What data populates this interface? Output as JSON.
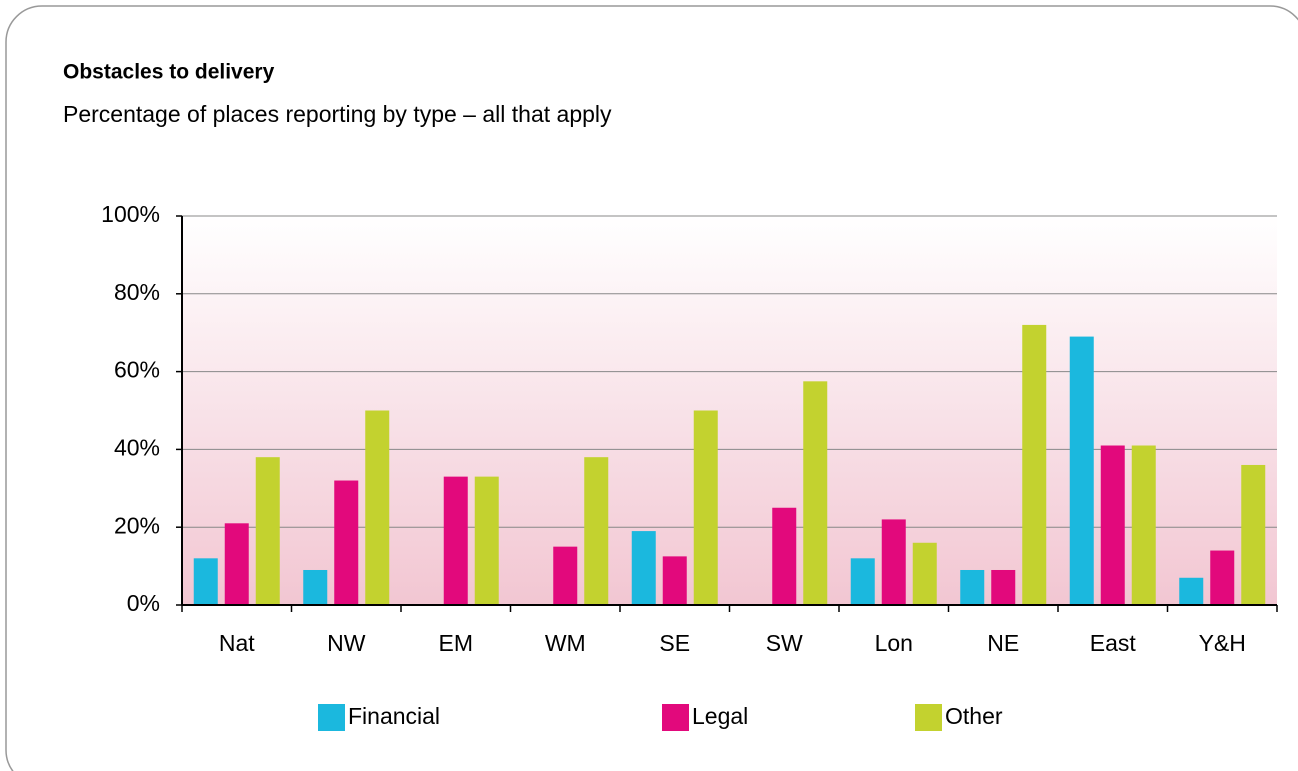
{
  "chart_data": {
    "type": "bar",
    "title": "Obstacles to delivery",
    "subtitle": "Percentage of places reporting by type – all that apply",
    "categories": [
      "Nat",
      "NW",
      "EM",
      "WM",
      "SE",
      "SW",
      "Lon",
      "NE",
      "East",
      "Y&H"
    ],
    "series": [
      {
        "name": "Financial",
        "color": "#1bb8de",
        "values": [
          12,
          9,
          0,
          0,
          19,
          0,
          12,
          9,
          69,
          7
        ]
      },
      {
        "name": "Legal",
        "color": "#e2097c",
        "values": [
          21,
          32,
          33,
          15,
          12.5,
          25,
          22,
          9,
          41,
          14
        ]
      },
      {
        "name": "Other",
        "color": "#c3d22f",
        "values": [
          38,
          50,
          33,
          38,
          50,
          57.5,
          16,
          72,
          41,
          36
        ]
      }
    ],
    "ylim": [
      0,
      100
    ],
    "yticks": [
      {
        "value": 0,
        "label": "0%"
      },
      {
        "value": 20,
        "label": "20%"
      },
      {
        "value": 40,
        "label": "40%"
      },
      {
        "value": 60,
        "label": "60%"
      },
      {
        "value": 80,
        "label": "80%"
      },
      {
        "value": 100,
        "label": "100%"
      }
    ],
    "grid": true,
    "legend": "bottom"
  }
}
